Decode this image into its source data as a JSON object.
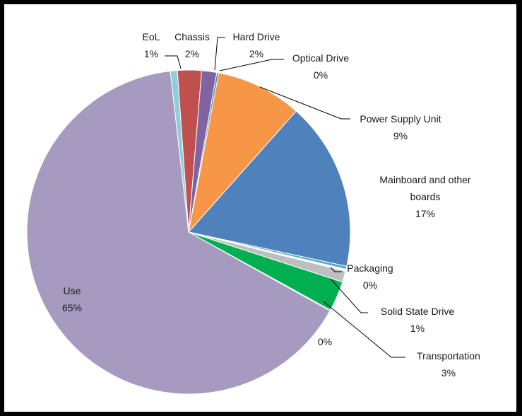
{
  "chart_data": {
    "type": "pie",
    "title": "",
    "start_angle_deg": -4,
    "direction": "clockwise",
    "slices": [
      {
        "label": "Chassis",
        "value_label": "2%",
        "value": 2.4,
        "color": "#c0504d"
      },
      {
        "label": "Hard Drive",
        "value_label": "2%",
        "value": 1.5,
        "color": "#8064a2"
      },
      {
        "label": "Optical Drive",
        "value_label": "0%",
        "value": 0.2,
        "color": "#4f81bd"
      },
      {
        "label": "Power Supply Unit",
        "value_label": "9%",
        "value": 8.6,
        "color": "#f79646"
      },
      {
        "label": "Mainboard and other boards",
        "value_label": "17%",
        "value": 16.8,
        "color": "#4f81bd"
      },
      {
        "label": "",
        "value_label": "",
        "value": 0.3,
        "color": "#4bacc6"
      },
      {
        "label": "Packaging",
        "value_label": "0%",
        "value": 0.2,
        "color": "#ffffff"
      },
      {
        "label": "Solid State Drive",
        "value_label": "1%",
        "value": 1.1,
        "color": "#bfbfbf"
      },
      {
        "label": "Transportation",
        "value_label": "3%",
        "value": 3.0,
        "color": "#00b050"
      },
      {
        "label": "",
        "value_label": "0%",
        "value": 0.1,
        "color": "#4f81bd"
      },
      {
        "label": "Use",
        "value_label": "65%",
        "value": 65.1,
        "color": "#a69ac0"
      },
      {
        "label": "EoL",
        "value_label": "1%",
        "value": 0.7,
        "color": "#92cddc"
      }
    ],
    "legend": "none"
  }
}
